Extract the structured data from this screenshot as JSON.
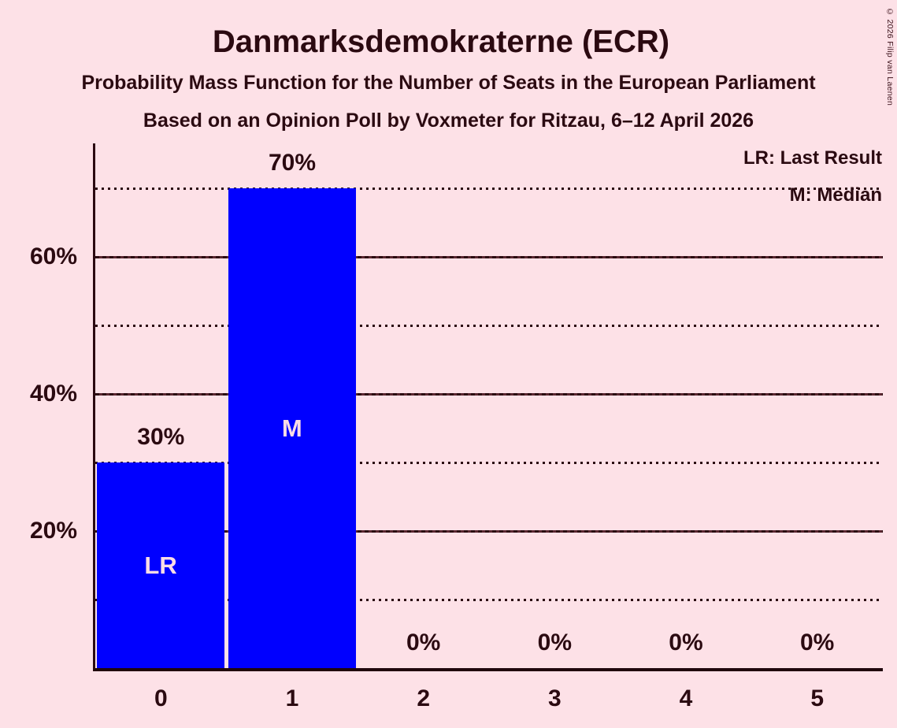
{
  "page": {
    "background_color": "#fde1e7",
    "text_color": "#2b0a11",
    "bar_color": "#0000ff",
    "bar_label_color": "#fbdce6"
  },
  "header": {
    "title": "Danmarksdemokraterne (ECR)",
    "subtitle1": "Probability Mass Function for the Number of Seats in the European Parliament",
    "subtitle2": "Based on an Opinion Poll by Voxmeter for Ritzau, 6–12 April 2026",
    "copyright": "© 2026 Filip van Laenen"
  },
  "chart_data": {
    "type": "bar",
    "title": "Danmarksdemokraterne (ECR)",
    "subtitle": "Probability Mass Function for the Number of Seats in the European Parliament",
    "source_line": "Based on an Opinion Poll by Voxmeter for Ritzau, 6–12 April 2026",
    "categories": [
      "0",
      "1",
      "2",
      "3",
      "4",
      "5"
    ],
    "values": [
      30,
      70,
      0,
      0,
      0,
      0
    ],
    "value_labels": [
      "30%",
      "70%",
      "0%",
      "0%",
      "0%",
      "0%"
    ],
    "bar_annotations": [
      "LR",
      "M",
      "",
      "",
      "",
      ""
    ],
    "annotation_meanings": {
      "LR": "Last Result",
      "M": "Median"
    },
    "legend": [
      "LR: Last Result",
      "M: Median"
    ],
    "legend_position": "top-right",
    "ylim": [
      0,
      76.5
    ],
    "ytick_values": [
      20,
      40,
      60
    ],
    "ytick_labels": [
      "20%",
      "40%",
      "60%"
    ],
    "solid_gridlines": [
      20,
      40,
      60
    ],
    "dotted_gridlines": [
      10,
      30,
      50,
      70
    ],
    "grid": "horizontal"
  }
}
